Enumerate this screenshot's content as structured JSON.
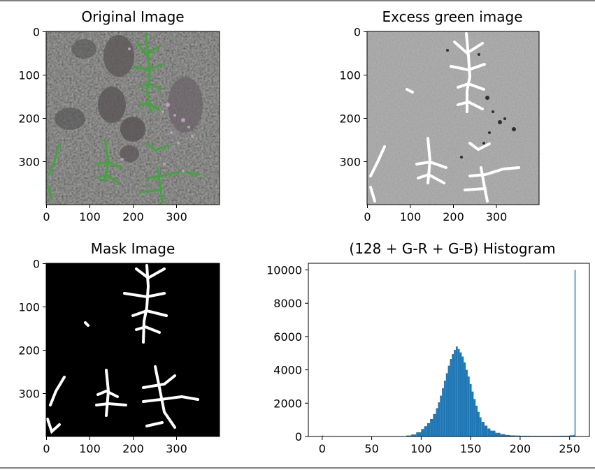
{
  "figure": {
    "panels": [
      {
        "id": "original",
        "title": "Original Image"
      },
      {
        "id": "excess-green",
        "title": "Excess green image"
      },
      {
        "id": "mask",
        "title": "Mask Image"
      },
      {
        "id": "histogram",
        "title": "(128 + G-R + G-B) Histogram"
      }
    ]
  },
  "chart_data": [
    {
      "type": "image",
      "title": "Original Image",
      "xlim": [
        0,
        400
      ],
      "ylim": [
        400,
        0
      ],
      "xticks": [
        0,
        100,
        200,
        300
      ],
      "yticks": [
        0,
        100,
        200,
        300
      ]
    },
    {
      "type": "image",
      "title": "Excess green image",
      "xlim": [
        0,
        400
      ],
      "ylim": [
        400,
        0
      ],
      "xticks": [
        0,
        100,
        200,
        300
      ],
      "yticks": [
        0,
        100,
        200,
        300
      ]
    },
    {
      "type": "image",
      "title": "Mask Image",
      "xlim": [
        0,
        400
      ],
      "ylim": [
        400,
        0
      ],
      "xticks": [
        0,
        100,
        200,
        300
      ],
      "yticks": [
        0,
        100,
        200,
        300
      ]
    },
    {
      "type": "bar",
      "title": "(128 + G-R + G-B) Histogram",
      "xlim": [
        -14,
        270
      ],
      "ylim": [
        0,
        10400
      ],
      "xticks": [
        0,
        50,
        100,
        150,
        200,
        250
      ],
      "yticks": [
        0,
        2000,
        4000,
        6000,
        8000,
        10000
      ],
      "color": "#1f77b4",
      "x": [
        0,
        80,
        85,
        90,
        95,
        100,
        103,
        106,
        109,
        112,
        115,
        117,
        119,
        121,
        123,
        125,
        127,
        129,
        131,
        133,
        135,
        137,
        139,
        141,
        143,
        145,
        147,
        149,
        151,
        153,
        155,
        157,
        159,
        161,
        164,
        167,
        170,
        175,
        180,
        185,
        190,
        195,
        200,
        210,
        220,
        230,
        240,
        250,
        254,
        255
      ],
      "values": [
        60,
        20,
        60,
        120,
        250,
        450,
        620,
        800,
        1050,
        1350,
        1700,
        2050,
        2450,
        2900,
        3350,
        3800,
        4250,
        4650,
        4950,
        5200,
        5400,
        5250,
        5050,
        4800,
        4450,
        4000,
        3600,
        3150,
        2700,
        2250,
        1850,
        1480,
        1150,
        880,
        650,
        480,
        350,
        220,
        140,
        90,
        65,
        55,
        45,
        40,
        40,
        40,
        45,
        70,
        100,
        10000
      ]
    }
  ]
}
